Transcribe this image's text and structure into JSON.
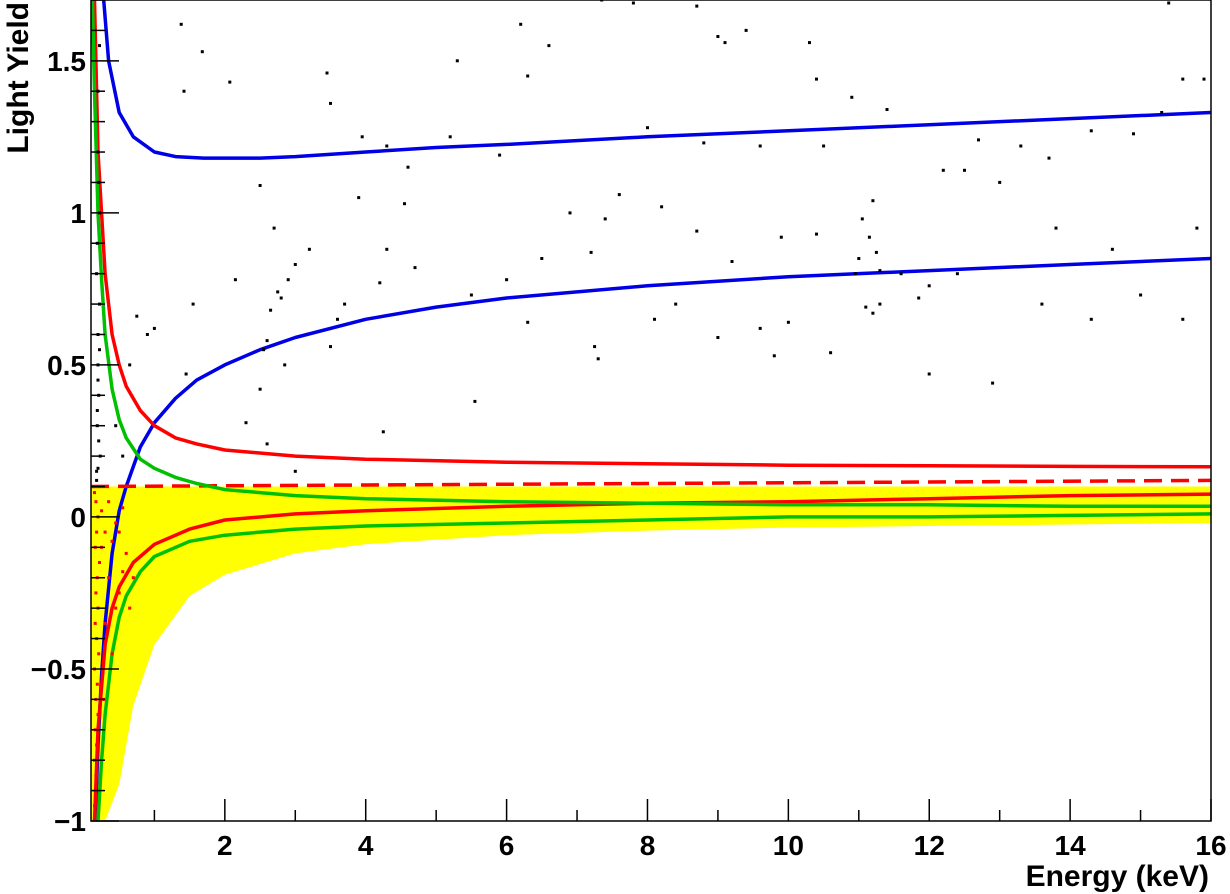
{
  "chart_data": {
    "type": "scatter",
    "title": "",
    "xlabel": "Energy (keV)",
    "ylabel": "Light Yield",
    "xlim": [
      0.1,
      16
    ],
    "ylim": [
      -1,
      1.7
    ],
    "x_ticks": [
      2,
      4,
      6,
      8,
      10,
      12,
      14,
      16
    ],
    "x_tick_labels": [
      "2",
      "4",
      "6",
      "8",
      "10",
      "12",
      "14",
      "16"
    ],
    "y_ticks": [
      -1,
      -0.5,
      0,
      0.5,
      1,
      1.5
    ],
    "y_tick_labels": [
      "−1",
      "−0.5",
      "0",
      "0.5",
      "1",
      "1.5"
    ],
    "grid": false,
    "colors": {
      "band_fill": "#ffff00",
      "blue": "#0000e6",
      "red": "#ff0000",
      "green": "#00c000",
      "points": "#000000",
      "points_below": "#ff0000"
    },
    "band": {
      "name": "",
      "x": [
        0.1,
        0.2,
        0.3,
        0.5,
        0.7,
        1,
        1.5,
        2,
        3,
        4,
        6,
        8,
        10,
        12,
        14,
        16
      ],
      "lower": [
        -1.0,
        -1.0,
        -1.0,
        -0.88,
        -0.62,
        -0.42,
        -0.26,
        -0.19,
        -0.12,
        -0.09,
        -0.06,
        -0.045,
        -0.035,
        -0.03,
        -0.025,
        -0.02
      ],
      "upper": [
        0.1,
        0.1,
        0.1,
        0.1,
        0.1,
        0.1,
        0.1,
        0.1,
        0.1,
        0.1,
        0.1,
        0.1,
        0.1,
        0.1,
        0.1,
        0.1
      ]
    },
    "series": [
      {
        "color": "#0000e6",
        "style": "solid",
        "x": [
          0.28,
          0.35,
          0.5,
          0.7,
          1,
          1.3,
          1.7,
          2,
          2.5,
          3,
          4,
          5,
          6,
          8,
          10,
          12,
          14,
          16
        ],
        "y": [
          1.7,
          1.5,
          1.33,
          1.25,
          1.2,
          1.185,
          1.18,
          1.18,
          1.18,
          1.185,
          1.2,
          1.215,
          1.225,
          1.25,
          1.27,
          1.29,
          1.31,
          1.33
        ]
      },
      {
        "color": "#0000e6",
        "style": "solid",
        "x": [
          0.16,
          0.2,
          0.25,
          0.3,
          0.4,
          0.5,
          0.6,
          0.8,
          1,
          1.3,
          1.6,
          2,
          2.5,
          3,
          4,
          5,
          6,
          8,
          10,
          12,
          14,
          16
        ],
        "y": [
          -1.0,
          -0.75,
          -0.52,
          -0.35,
          -0.12,
          0.02,
          0.1,
          0.23,
          0.31,
          0.39,
          0.45,
          0.5,
          0.55,
          0.59,
          0.65,
          0.69,
          0.72,
          0.76,
          0.79,
          0.81,
          0.83,
          0.85
        ]
      },
      {
        "color": "#ff0000",
        "style": "solid",
        "x": [
          0.15,
          0.2,
          0.3,
          0.4,
          0.5,
          0.6,
          0.8,
          1,
          1.3,
          1.6,
          2,
          3,
          4,
          6,
          8,
          10,
          12,
          14,
          16
        ],
        "y": [
          1.7,
          1.2,
          0.8,
          0.6,
          0.5,
          0.43,
          0.35,
          0.3,
          0.26,
          0.24,
          0.22,
          0.2,
          0.19,
          0.18,
          0.175,
          0.17,
          0.168,
          0.166,
          0.165
        ]
      },
      {
        "color": "#ff0000",
        "style": "dashed",
        "x": [
          0.1,
          4,
          8,
          12,
          16
        ],
        "y": [
          0.1,
          0.105,
          0.11,
          0.115,
          0.12
        ]
      },
      {
        "color": "#ff0000",
        "style": "solid",
        "x": [
          0.15,
          0.2,
          0.3,
          0.4,
          0.5,
          0.7,
          1,
          1.5,
          2,
          3,
          4,
          6,
          8,
          10,
          12,
          14,
          16
        ],
        "y": [
          -1.0,
          -0.7,
          -0.42,
          -0.3,
          -0.23,
          -0.15,
          -0.09,
          -0.04,
          -0.01,
          0.01,
          0.02,
          0.035,
          0.045,
          0.05,
          0.06,
          0.07,
          0.075
        ]
      },
      {
        "color": "#00c000",
        "style": "solid",
        "x": [
          0.12,
          0.15,
          0.2,
          0.25,
          0.3,
          0.4,
          0.5,
          0.6,
          0.8,
          1,
          1.3,
          1.6,
          2,
          3,
          4,
          6,
          8,
          10,
          12,
          14,
          16
        ],
        "y": [
          1.7,
          1.4,
          1.0,
          0.78,
          0.6,
          0.42,
          0.32,
          0.26,
          0.19,
          0.16,
          0.13,
          0.11,
          0.09,
          0.07,
          0.06,
          0.05,
          0.045,
          0.04,
          0.04,
          0.035,
          0.035
        ]
      },
      {
        "color": "#00c000",
        "style": "solid",
        "x": [
          0.2,
          0.25,
          0.3,
          0.4,
          0.5,
          0.6,
          0.8,
          1,
          1.5,
          2,
          3,
          4,
          6,
          8,
          10,
          12,
          14,
          16
        ],
        "y": [
          -1.0,
          -0.8,
          -0.65,
          -0.45,
          -0.33,
          -0.26,
          -0.18,
          -0.13,
          -0.08,
          -0.06,
          -0.04,
          -0.03,
          -0.02,
          -0.01,
          0.0,
          0.0,
          0.005,
          0.01
        ]
      }
    ],
    "points": [
      [
        1.38,
        1.62
      ],
      [
        1.42,
        1.4
      ],
      [
        1.68,
        1.53
      ],
      [
        2.07,
        1.43
      ],
      [
        2.15,
        0.78
      ],
      [
        2.5,
        1.09
      ],
      [
        3.2,
        0.88
      ],
      [
        3.45,
        1.46
      ],
      [
        3.5,
        1.36
      ],
      [
        3.9,
        1.05
      ],
      [
        4.3,
        1.22
      ],
      [
        4.55,
        1.03
      ],
      [
        5.3,
        1.5
      ],
      [
        5.2,
        1.25
      ],
      [
        6.2,
        1.62
      ],
      [
        6.3,
        1.45
      ],
      [
        6.6,
        1.55
      ],
      [
        7.35,
        1.7
      ],
      [
        7.8,
        1.69
      ],
      [
        8.7,
        1.68
      ],
      [
        9.0,
        1.58
      ],
      [
        9.1,
        1.56
      ],
      [
        9.4,
        1.6
      ],
      [
        10.3,
        1.56
      ],
      [
        10.4,
        1.44
      ],
      [
        10.9,
        1.38
      ],
      [
        11.4,
        1.34
      ],
      [
        12.5,
        1.14
      ],
      [
        13.3,
        1.22
      ],
      [
        15.4,
        1.69
      ],
      [
        15.6,
        1.44
      ],
      [
        15.9,
        1.44
      ],
      [
        15.3,
        1.33
      ],
      [
        14.3,
        1.27
      ],
      [
        13.0,
        1.1
      ],
      [
        12.2,
        1.14
      ],
      [
        11.2,
        1.04
      ],
      [
        11.05,
        0.98
      ],
      [
        11.15,
        0.92
      ],
      [
        11.25,
        0.87
      ],
      [
        11.0,
        0.85
      ],
      [
        10.95,
        0.8
      ],
      [
        11.3,
        0.81
      ],
      [
        11.1,
        0.69
      ],
      [
        11.2,
        0.67
      ],
      [
        11.3,
        0.7
      ],
      [
        11.6,
        0.8
      ],
      [
        11.85,
        0.72
      ],
      [
        10.4,
        0.93
      ],
      [
        9.9,
        0.92
      ],
      [
        9.2,
        0.84
      ],
      [
        8.7,
        0.94
      ],
      [
        8.2,
        1.02
      ],
      [
        7.6,
        1.06
      ],
      [
        7.4,
        0.98
      ],
      [
        7.2,
        0.87
      ],
      [
        6.9,
        1.0
      ],
      [
        6.5,
        0.85
      ],
      [
        6.0,
        0.78
      ],
      [
        5.5,
        0.73
      ],
      [
        4.7,
        0.82
      ],
      [
        4.3,
        0.88
      ],
      [
        4.2,
        0.77
      ],
      [
        3.7,
        0.7
      ],
      [
        3.6,
        0.65
      ],
      [
        3.5,
        0.56
      ],
      [
        3.0,
        0.83
      ],
      [
        2.9,
        0.78
      ],
      [
        2.8,
        0.72
      ],
      [
        2.7,
        0.95
      ],
      [
        2.75,
        0.74
      ],
      [
        2.65,
        0.68
      ],
      [
        2.6,
        0.58
      ],
      [
        2.55,
        0.55
      ],
      [
        2.5,
        0.42
      ],
      [
        2.3,
        0.31
      ],
      [
        2.6,
        0.24
      ],
      [
        2.85,
        0.5
      ],
      [
        3.0,
        0.15
      ],
      [
        4.25,
        0.28
      ],
      [
        5.55,
        0.38
      ],
      [
        7.25,
        0.56
      ],
      [
        7.3,
        0.52
      ],
      [
        8.4,
        0.7
      ],
      [
        9.0,
        0.59
      ],
      [
        9.8,
        0.53
      ],
      [
        10.6,
        0.54
      ],
      [
        12.0,
        0.47
      ],
      [
        12.9,
        0.44
      ],
      [
        13.6,
        0.7
      ],
      [
        14.3,
        0.65
      ],
      [
        15.0,
        0.73
      ],
      [
        15.6,
        0.65
      ],
      [
        15.8,
        0.95
      ],
      [
        14.6,
        0.88
      ],
      [
        13.8,
        0.95
      ],
      [
        12.4,
        0.8
      ],
      [
        12.0,
        0.76
      ],
      [
        10.0,
        0.64
      ],
      [
        9.6,
        0.62
      ],
      [
        8.1,
        0.65
      ],
      [
        6.3,
        0.64
      ],
      [
        1.0,
        0.62
      ],
      [
        0.9,
        0.6
      ],
      [
        0.75,
        0.66
      ],
      [
        0.65,
        0.5
      ],
      [
        1.45,
        0.47
      ],
      [
        1.55,
        0.7
      ],
      [
        0.55,
        0.2
      ],
      [
        0.45,
        0.3
      ],
      [
        3.95,
        1.25
      ],
      [
        8.0,
        1.28
      ],
      [
        8.8,
        1.23
      ],
      [
        9.6,
        1.22
      ],
      [
        10.5,
        1.22
      ],
      [
        12.7,
        1.24
      ],
      [
        13.7,
        1.18
      ],
      [
        14.9,
        1.26
      ],
      [
        4.6,
        1.15
      ],
      [
        5.9,
        1.19
      ],
      [
        0.2,
        1.2
      ],
      [
        0.22,
        1.0
      ],
      [
        0.18,
        0.8
      ],
      [
        0.2,
        0.6
      ],
      [
        0.21,
        0.4
      ],
      [
        0.19,
        0.3
      ],
      [
        0.23,
        0.2
      ],
      [
        0.2,
        0.16
      ],
      [
        0.18,
        0.12
      ],
      [
        0.22,
        0.7
      ],
      [
        0.2,
        0.5
      ],
      [
        0.19,
        0.9
      ],
      [
        0.21,
        1.1
      ],
      [
        0.2,
        1.4
      ],
      [
        0.22,
        1.55
      ],
      [
        0.19,
        0.35
      ],
      [
        0.21,
        0.25
      ],
      [
        0.18,
        0.15
      ],
      [
        0.2,
        0.45
      ],
      [
        0.22,
        0.55
      ]
    ],
    "points_below": [
      [
        0.15,
        0.08
      ],
      [
        0.17,
        0.05
      ],
      [
        0.2,
        0.0
      ],
      [
        0.18,
        -0.05
      ],
      [
        0.16,
        -0.1
      ],
      [
        0.22,
        -0.15
      ],
      [
        0.19,
        -0.2
      ],
      [
        0.17,
        -0.25
      ],
      [
        0.2,
        -0.3
      ],
      [
        0.16,
        -0.35
      ],
      [
        0.18,
        -0.4
      ],
      [
        0.21,
        -0.45
      ],
      [
        0.15,
        -0.5
      ],
      [
        0.19,
        -0.55
      ],
      [
        0.17,
        -0.6
      ],
      [
        0.2,
        -0.65
      ],
      [
        0.16,
        -0.7
      ],
      [
        0.18,
        -0.75
      ],
      [
        0.15,
        -0.8
      ],
      [
        0.17,
        -0.85
      ],
      [
        0.16,
        -0.9
      ],
      [
        0.15,
        -0.95
      ],
      [
        0.25,
        -0.1
      ],
      [
        0.3,
        -0.05
      ],
      [
        0.35,
        -0.2
      ],
      [
        0.4,
        -0.08
      ],
      [
        0.45,
        -0.3
      ],
      [
        0.5,
        -0.25
      ],
      [
        0.55,
        -0.18
      ],
      [
        0.6,
        -0.12
      ],
      [
        0.3,
        -0.35
      ],
      [
        0.4,
        -0.45
      ],
      [
        0.28,
        -0.6
      ],
      [
        0.5,
        -0.05
      ],
      [
        0.65,
        -0.3
      ],
      [
        0.7,
        -0.2
      ],
      [
        0.35,
        0.05
      ],
      [
        0.25,
        0.02
      ],
      [
        0.45,
        -0.02
      ],
      [
        0.55,
        0.03
      ]
    ]
  }
}
